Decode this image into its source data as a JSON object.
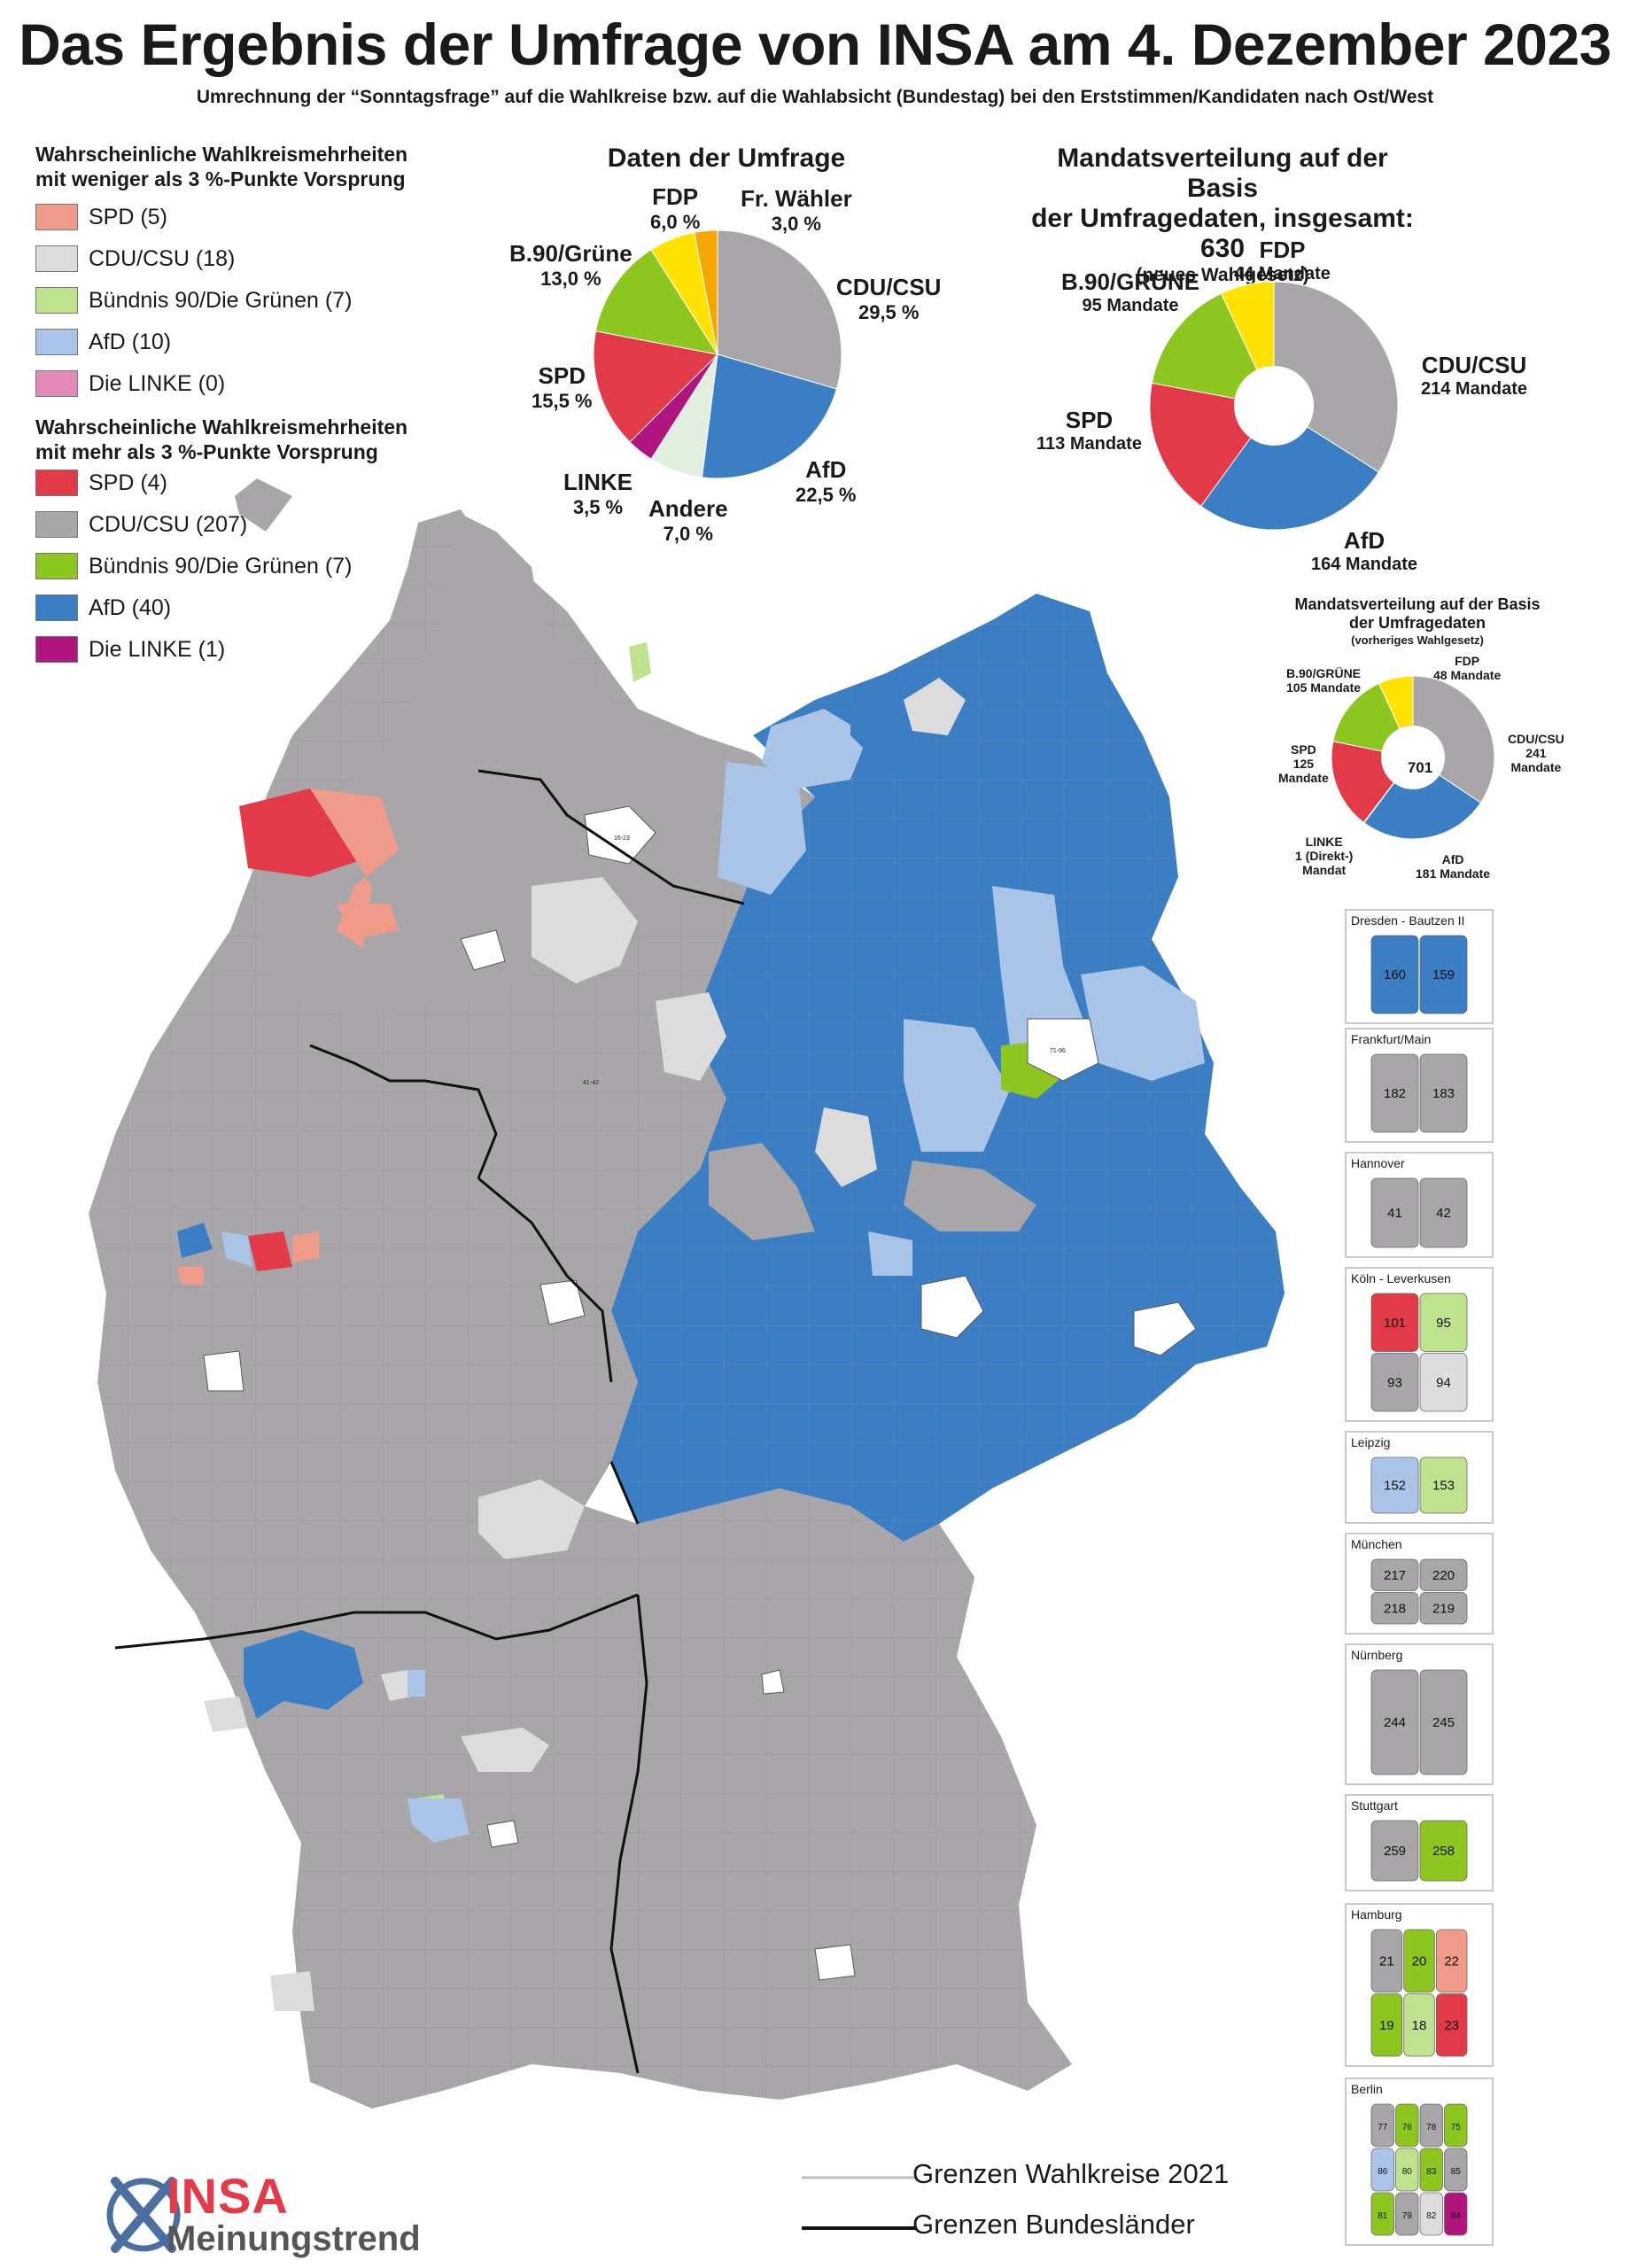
{
  "title": "Das Ergebnis der Umfrage von INSA am 4. Dezember 2023",
  "subtitle": "Umrechnung der “Sonntagsfrage” auf die Wahlkreise bzw. auf die Wahlabsicht (Bundestag) bei den Erststimmen/Kandidaten nach Ost/West",
  "legend": {
    "group1_title_l1": "Wahrscheinliche Wahlkreismehrheiten",
    "group1_title_l2": "mit weniger als 3 %-Punkte Vorsprung",
    "group1": [
      {
        "label": "SPD (5)",
        "color": "#f09a8a"
      },
      {
        "label": "CDU/CSU (18)",
        "color": "#dcdcdc"
      },
      {
        "label": "Bündnis 90/Die Grünen (7)",
        "color": "#bfe28f"
      },
      {
        "label": "AfD (10)",
        "color": "#a9c4e6"
      },
      {
        "label": "Die LINKE (0)",
        "color": "#e48ab9"
      }
    ],
    "group2_title_l1": "Wahrscheinliche Wahlkreismehrheiten",
    "group2_title_l2": "mit mehr als 3 %-Punkte Vorsprung",
    "group2": [
      {
        "label": "SPD (4)",
        "color": "#e23a48"
      },
      {
        "label": "CDU/CSU (207)",
        "color": "#a8a6a8"
      },
      {
        "label": "Bündnis 90/Die Grünen (7)",
        "color": "#8cc61e"
      },
      {
        "label": "AfD (40)",
        "color": "#3b7ec3"
      },
      {
        "label": "Die LINKE (1)",
        "color": "#b0147d"
      }
    ]
  },
  "pie1": {
    "title": "Daten der Umfrage",
    "slices": [
      {
        "name": "CDU/CSU",
        "pct": "29,5 %",
        "value": 29.5,
        "color": "#a8a6a8"
      },
      {
        "name": "AfD",
        "pct": "22,5 %",
        "value": 22.5,
        "color": "#3b7ec3"
      },
      {
        "name": "Andere",
        "pct": "7,0 %",
        "value": 7.0,
        "color": "#e2eee0"
      },
      {
        "name": "LINKE",
        "pct": "3,5 %",
        "value": 3.5,
        "color": "#b0147d"
      },
      {
        "name": "SPD",
        "pct": "15,5 %",
        "value": 15.5,
        "color": "#e23a48"
      },
      {
        "name": "B.90/Grüne",
        "pct": "13,0 %",
        "value": 13.0,
        "color": "#8cc61e"
      },
      {
        "name": "FDP",
        "pct": "6,0 %",
        "value": 6.0,
        "color": "#ffe200"
      },
      {
        "name": "Fr. Wähler",
        "pct": "3,0 %",
        "value": 3.0,
        "color": "#f4a700"
      }
    ]
  },
  "pie2": {
    "title_l1": "Mandatsverteilung auf der Basis",
    "title_l2": "der Umfragedaten, insgesamt: 630",
    "title_l3": "(neues Wahlgesetz)",
    "slices": [
      {
        "name": "CDU/CSU",
        "seats": "214 Mandate",
        "value": 214,
        "color": "#a8a6a8"
      },
      {
        "name": "AfD",
        "seats": "164 Mandate",
        "value": 164,
        "color": "#3b7ec3"
      },
      {
        "name": "SPD",
        "seats": "113 Mandate",
        "value": 113,
        "color": "#e23a48"
      },
      {
        "name": "B.90/GRÜNE",
        "seats": "95 Mandate",
        "value": 95,
        "color": "#8cc61e"
      },
      {
        "name": "FDP",
        "seats": "44 Mandate",
        "value": 44,
        "color": "#ffe200"
      }
    ]
  },
  "pie3": {
    "title_l1": "Mandatsverteilung auf der Basis",
    "title_l2": "der Umfragedaten",
    "title_l3": "(vorheriges Wahlgesetz)",
    "total": "701",
    "slices": [
      {
        "name": "CDU/CSU",
        "seats": "241",
        "unit": "Mandate",
        "value": 241,
        "color": "#a8a6a8"
      },
      {
        "name": "AfD",
        "seats": "181 Mandate",
        "value": 181,
        "color": "#3b7ec3"
      },
      {
        "name": "LINKE",
        "seats": "1 (Direkt-)",
        "unit": "Mandat",
        "value": 1,
        "color": "#b0147d"
      },
      {
        "name": "SPD",
        "seats": "125",
        "unit": "Mandate",
        "value": 125,
        "color": "#e23a48"
      },
      {
        "name": "B.90/GRÜNE",
        "seats": "105 Mandate",
        "value": 105,
        "color": "#8cc61e"
      },
      {
        "name": "FDP",
        "seats": "48 Mandate",
        "value": 48,
        "color": "#ffe200"
      }
    ]
  },
  "insets": [
    {
      "caption": "Dresden - Bautzen II",
      "nums": [
        "160",
        "159"
      ]
    },
    {
      "caption": "Frankfurt/Main",
      "nums": [
        "182",
        "183"
      ]
    },
    {
      "caption": "Hannover",
      "nums": [
        "41",
        "42"
      ]
    },
    {
      "caption": "Köln -  Leverkusen",
      "nums": [
        "101",
        "95",
        "93",
        "94"
      ]
    },
    {
      "caption": "Leipzig",
      "nums": [
        "152",
        "153"
      ]
    },
    {
      "caption": "München",
      "nums": [
        "217",
        "220",
        "218",
        "219"
      ]
    },
    {
      "caption": "Nürnberg",
      "nums": [
        "244",
        "245"
      ]
    },
    {
      "caption": "Stuttgart",
      "nums": [
        "259",
        "258"
      ]
    },
    {
      "caption": "Hamburg",
      "nums": [
        "21",
        "20",
        "22",
        "19",
        "18",
        "23"
      ]
    },
    {
      "caption": "Berlin",
      "nums": [
        "77",
        "76",
        "78",
        "75",
        "86",
        "80",
        "83",
        "85",
        "81",
        "79",
        "82",
        "84"
      ]
    }
  ],
  "map_labels": [
    "16-23",
    "41-42",
    "71-96"
  ],
  "bottom_legend": {
    "district": "Grenzen Wahlkreise 2021",
    "state": "Grenzen Bundesländer"
  },
  "logo": {
    "brand": "INSA",
    "sub": "Meinungstrend"
  }
}
